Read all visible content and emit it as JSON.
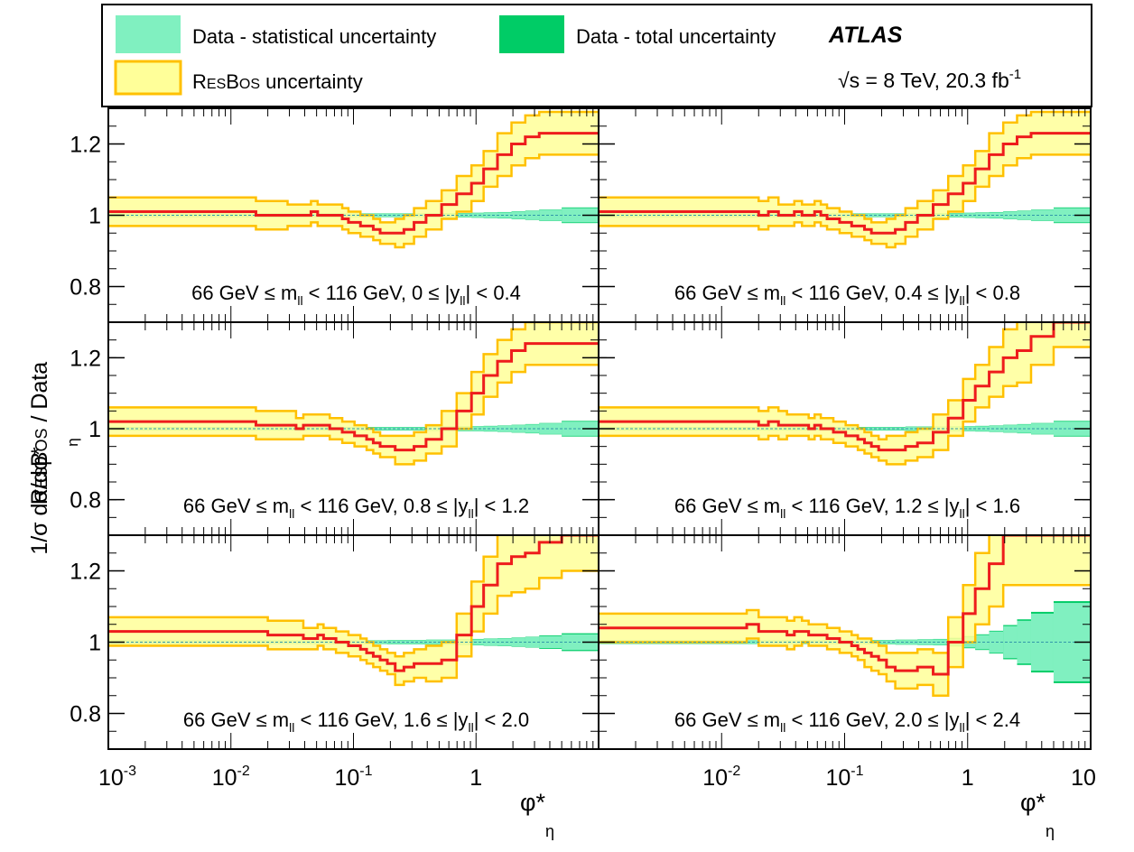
{
  "legend": {
    "stat_label": "Data - statistical uncertainty",
    "total_label": "Data - total uncertainty",
    "resbos_label_prefix": "R",
    "resbos_label_small": "ES",
    "resbos_label_mid": "B",
    "resbos_label_small2": "OS",
    "resbos_label_suffix": " uncertainty",
    "experiment": "ATLAS",
    "energy_sqrt": "√s",
    "energy_text": " = 8 TeV, 20.3 fb",
    "energy_sup": "-1"
  },
  "axis": {
    "ylabel_line1_prefix": "R",
    "ylabel_line1_small": "ES",
    "ylabel_line1_mid": "B",
    "ylabel_line1_small2": "OS",
    "ylabel_line1_suffix": " / Data",
    "ylabel_line2": "1/σ dσ/dφ*",
    "ylabel_line2_sub": "η",
    "xlabel_main": "φ*",
    "xlabel_sub": "η",
    "ytick_labels": [
      "0.8",
      "1",
      "1.2"
    ],
    "xtick_left_labels": [
      {
        "base": "10",
        "exp": "-3"
      },
      {
        "base": "10",
        "exp": "-2"
      },
      {
        "base": "10",
        "exp": "-1"
      },
      {
        "base": "1",
        "exp": ""
      }
    ],
    "xtick_right_labels": [
      {
        "base": "10",
        "exp": "-2"
      },
      {
        "base": "10",
        "exp": "-1"
      },
      {
        "base": "1",
        "exp": ""
      },
      {
        "base": "10",
        "exp": ""
      }
    ]
  },
  "colors": {
    "stat": "#80f0c0",
    "total": "#00cc66",
    "resbos_band": "#ffff99",
    "resbos_edge": "#ffc000",
    "resbos_line": "#ee1c1c",
    "ref_line": "#3399aa"
  },
  "chart_data": {
    "type": "line",
    "x_scale": "log",
    "x_edges": [
      0.001,
      0.004,
      0.008,
      0.012,
      0.016,
      0.02,
      0.024,
      0.029,
      0.034,
      0.039,
      0.045,
      0.051,
      0.057,
      0.064,
      0.072,
      0.081,
      0.091,
      0.102,
      0.114,
      0.128,
      0.145,
      0.165,
      0.189,
      0.219,
      0.258,
      0.312,
      0.391,
      0.524,
      0.695,
      0.918,
      1.153,
      1.496,
      1.947,
      2.522,
      3.277,
      5.0,
      10.0
    ],
    "ylim": [
      0.7,
      1.3
    ],
    "panels": [
      {
        "label": {
          "pre": "66 GeV ≤ m",
          "sub1": "ll",
          "mid": " < 116 GeV, 0 ≤ |y",
          "sub2": "ll",
          "post": "| < 0.4"
        },
        "show_right_xticks": false,
        "ratio": [
          1.01,
          1.01,
          1.01,
          1.01,
          1.0,
          1.0,
          1.0,
          1.0,
          1.0,
          1.0,
          1.01,
          1.0,
          1.0,
          1.0,
          1.0,
          0.99,
          0.98,
          0.98,
          0.97,
          0.97,
          0.96,
          0.95,
          0.95,
          0.95,
          0.96,
          0.98,
          1.0,
          1.03,
          1.06,
          1.09,
          1.13,
          1.17,
          1.2,
          1.22,
          1.23,
          1.23
        ],
        "band": [
          0.04,
          0.04,
          0.04,
          0.04,
          0.04,
          0.04,
          0.04,
          0.03,
          0.03,
          0.03,
          0.03,
          0.03,
          0.03,
          0.03,
          0.03,
          0.03,
          0.03,
          0.03,
          0.03,
          0.03,
          0.03,
          0.03,
          0.03,
          0.04,
          0.04,
          0.04,
          0.04,
          0.04,
          0.05,
          0.05,
          0.05,
          0.06,
          0.06,
          0.06,
          0.06,
          0.06
        ],
        "stat": [
          0.004,
          0.004,
          0.004,
          0.004,
          0.004,
          0.004,
          0.004,
          0.004,
          0.004,
          0.004,
          0.004,
          0.004,
          0.004,
          0.004,
          0.004,
          0.004,
          0.004,
          0.004,
          0.004,
          0.004,
          0.004,
          0.004,
          0.004,
          0.004,
          0.004,
          0.004,
          0.004,
          0.005,
          0.005,
          0.006,
          0.007,
          0.008,
          0.01,
          0.012,
          0.015,
          0.02
        ],
        "total": [
          0.005,
          0.005,
          0.005,
          0.005,
          0.005,
          0.005,
          0.005,
          0.005,
          0.005,
          0.005,
          0.005,
          0.005,
          0.005,
          0.005,
          0.005,
          0.005,
          0.005,
          0.005,
          0.005,
          0.005,
          0.005,
          0.005,
          0.005,
          0.005,
          0.005,
          0.005,
          0.005,
          0.006,
          0.006,
          0.007,
          0.008,
          0.009,
          0.011,
          0.013,
          0.016,
          0.022
        ]
      },
      {
        "label": {
          "pre": "66 GeV ≤ m",
          "sub1": "ll",
          "mid": " < 116 GeV, 0.4 ≤ |y",
          "sub2": "ll",
          "post": "| < 0.8"
        },
        "show_right_xticks": false,
        "ratio": [
          1.01,
          1.01,
          1.01,
          1.01,
          1.01,
          1.0,
          1.01,
          1.0,
          1.0,
          1.01,
          1.0,
          1.0,
          1.01,
          1.0,
          0.99,
          0.99,
          0.98,
          0.98,
          0.97,
          0.97,
          0.96,
          0.95,
          0.95,
          0.95,
          0.96,
          0.98,
          1.0,
          1.03,
          1.06,
          1.09,
          1.13,
          1.17,
          1.2,
          1.22,
          1.23,
          1.23
        ],
        "band": [
          0.04,
          0.04,
          0.04,
          0.04,
          0.04,
          0.04,
          0.04,
          0.03,
          0.03,
          0.03,
          0.03,
          0.03,
          0.03,
          0.03,
          0.03,
          0.03,
          0.03,
          0.03,
          0.03,
          0.03,
          0.03,
          0.03,
          0.03,
          0.04,
          0.04,
          0.04,
          0.04,
          0.04,
          0.05,
          0.05,
          0.05,
          0.06,
          0.06,
          0.06,
          0.06,
          0.06
        ],
        "stat": [
          0.004,
          0.004,
          0.004,
          0.004,
          0.004,
          0.004,
          0.004,
          0.004,
          0.004,
          0.004,
          0.004,
          0.004,
          0.004,
          0.004,
          0.004,
          0.004,
          0.004,
          0.004,
          0.004,
          0.004,
          0.004,
          0.004,
          0.004,
          0.004,
          0.004,
          0.004,
          0.004,
          0.005,
          0.005,
          0.006,
          0.007,
          0.008,
          0.01,
          0.012,
          0.015,
          0.02
        ],
        "total": [
          0.005,
          0.005,
          0.005,
          0.005,
          0.005,
          0.005,
          0.005,
          0.005,
          0.005,
          0.005,
          0.005,
          0.005,
          0.005,
          0.005,
          0.005,
          0.005,
          0.005,
          0.005,
          0.005,
          0.005,
          0.005,
          0.005,
          0.005,
          0.005,
          0.005,
          0.005,
          0.005,
          0.006,
          0.006,
          0.007,
          0.008,
          0.009,
          0.011,
          0.013,
          0.016,
          0.022
        ]
      },
      {
        "label": {
          "pre": "66 GeV ≤ m",
          "sub1": "ll",
          "mid": " < 116 GeV, 0.8 ≤ |y",
          "sub2": "ll",
          "post": "| < 1.2"
        },
        "show_right_xticks": false,
        "ratio": [
          1.02,
          1.02,
          1.02,
          1.02,
          1.01,
          1.01,
          1.01,
          1.01,
          1.0,
          1.01,
          1.01,
          1.01,
          1.01,
          1.0,
          1.0,
          0.99,
          0.99,
          0.98,
          0.98,
          0.97,
          0.96,
          0.95,
          0.95,
          0.94,
          0.94,
          0.95,
          0.97,
          1.0,
          1.05,
          1.1,
          1.15,
          1.19,
          1.22,
          1.24,
          1.24,
          1.24
        ],
        "band": [
          0.04,
          0.04,
          0.04,
          0.04,
          0.04,
          0.04,
          0.04,
          0.04,
          0.03,
          0.03,
          0.03,
          0.03,
          0.03,
          0.03,
          0.03,
          0.03,
          0.03,
          0.03,
          0.03,
          0.03,
          0.03,
          0.03,
          0.03,
          0.04,
          0.04,
          0.04,
          0.04,
          0.05,
          0.05,
          0.06,
          0.06,
          0.06,
          0.06,
          0.06,
          0.06,
          0.06
        ],
        "stat": [
          0.004,
          0.004,
          0.004,
          0.004,
          0.004,
          0.004,
          0.004,
          0.004,
          0.004,
          0.004,
          0.004,
          0.004,
          0.004,
          0.004,
          0.004,
          0.004,
          0.004,
          0.004,
          0.004,
          0.004,
          0.004,
          0.004,
          0.004,
          0.004,
          0.004,
          0.004,
          0.005,
          0.005,
          0.006,
          0.006,
          0.007,
          0.008,
          0.01,
          0.012,
          0.015,
          0.02
        ],
        "total": [
          0.005,
          0.005,
          0.005,
          0.005,
          0.005,
          0.005,
          0.005,
          0.005,
          0.005,
          0.005,
          0.005,
          0.005,
          0.005,
          0.005,
          0.005,
          0.005,
          0.005,
          0.005,
          0.005,
          0.005,
          0.005,
          0.005,
          0.005,
          0.005,
          0.005,
          0.005,
          0.006,
          0.006,
          0.007,
          0.007,
          0.008,
          0.009,
          0.011,
          0.013,
          0.016,
          0.022
        ]
      },
      {
        "label": {
          "pre": "66 GeV ≤ m",
          "sub1": "ll",
          "mid": " < 116 GeV, 1.2 ≤ |y",
          "sub2": "ll",
          "post": "| < 1.6"
        },
        "show_right_xticks": false,
        "ratio": [
          1.02,
          1.02,
          1.02,
          1.02,
          1.02,
          1.01,
          1.02,
          1.01,
          1.01,
          1.01,
          1.01,
          1.0,
          1.01,
          1.0,
          1.0,
          0.99,
          0.99,
          0.98,
          0.98,
          0.97,
          0.96,
          0.95,
          0.94,
          0.94,
          0.94,
          0.95,
          0.96,
          0.99,
          1.03,
          1.08,
          1.12,
          1.16,
          1.2,
          1.22,
          1.26,
          1.3
        ],
        "band": [
          0.04,
          0.04,
          0.04,
          0.04,
          0.04,
          0.04,
          0.04,
          0.04,
          0.03,
          0.03,
          0.03,
          0.03,
          0.03,
          0.03,
          0.03,
          0.03,
          0.03,
          0.03,
          0.03,
          0.03,
          0.03,
          0.03,
          0.03,
          0.04,
          0.04,
          0.04,
          0.04,
          0.05,
          0.05,
          0.06,
          0.06,
          0.07,
          0.08,
          0.09,
          0.08,
          0.07
        ],
        "stat": [
          0.004,
          0.004,
          0.004,
          0.004,
          0.004,
          0.004,
          0.004,
          0.004,
          0.004,
          0.004,
          0.004,
          0.004,
          0.004,
          0.004,
          0.004,
          0.004,
          0.004,
          0.004,
          0.004,
          0.004,
          0.004,
          0.004,
          0.004,
          0.004,
          0.004,
          0.005,
          0.005,
          0.005,
          0.006,
          0.006,
          0.007,
          0.008,
          0.01,
          0.012,
          0.015,
          0.02
        ],
        "total": [
          0.005,
          0.005,
          0.005,
          0.005,
          0.005,
          0.005,
          0.005,
          0.005,
          0.005,
          0.005,
          0.005,
          0.005,
          0.005,
          0.005,
          0.005,
          0.005,
          0.005,
          0.005,
          0.005,
          0.005,
          0.005,
          0.005,
          0.005,
          0.005,
          0.005,
          0.006,
          0.006,
          0.006,
          0.007,
          0.007,
          0.008,
          0.009,
          0.011,
          0.013,
          0.016,
          0.022
        ]
      },
      {
        "label": {
          "pre": "66 GeV ≤ m",
          "sub1": "ll",
          "mid": " < 116 GeV, 1.6 ≤ |y",
          "sub2": "ll",
          "post": "| < 2.0"
        },
        "show_right_xticks": true,
        "ratio": [
          1.03,
          1.03,
          1.03,
          1.03,
          1.03,
          1.02,
          1.02,
          1.02,
          1.02,
          1.01,
          1.01,
          1.02,
          1.01,
          1.01,
          1.0,
          1.0,
          0.99,
          0.99,
          0.98,
          0.97,
          0.96,
          0.95,
          0.94,
          0.92,
          0.93,
          0.94,
          0.94,
          0.95,
          1.02,
          1.1,
          1.16,
          1.22,
          1.24,
          1.25,
          1.28,
          1.3
        ],
        "band": [
          0.04,
          0.04,
          0.04,
          0.04,
          0.04,
          0.04,
          0.04,
          0.04,
          0.04,
          0.03,
          0.03,
          0.03,
          0.03,
          0.03,
          0.03,
          0.03,
          0.03,
          0.03,
          0.03,
          0.03,
          0.03,
          0.03,
          0.03,
          0.04,
          0.04,
          0.04,
          0.05,
          0.05,
          0.06,
          0.07,
          0.08,
          0.09,
          0.1,
          0.1,
          0.1,
          0.1
        ],
        "stat": [
          0.004,
          0.004,
          0.004,
          0.004,
          0.004,
          0.004,
          0.004,
          0.004,
          0.004,
          0.004,
          0.004,
          0.004,
          0.004,
          0.004,
          0.004,
          0.004,
          0.004,
          0.004,
          0.004,
          0.004,
          0.004,
          0.004,
          0.005,
          0.005,
          0.005,
          0.005,
          0.006,
          0.006,
          0.007,
          0.008,
          0.009,
          0.01,
          0.012,
          0.014,
          0.017,
          0.022
        ],
        "total": [
          0.005,
          0.005,
          0.005,
          0.005,
          0.005,
          0.005,
          0.005,
          0.005,
          0.005,
          0.005,
          0.005,
          0.005,
          0.005,
          0.005,
          0.005,
          0.005,
          0.005,
          0.005,
          0.005,
          0.005,
          0.005,
          0.005,
          0.006,
          0.006,
          0.006,
          0.006,
          0.007,
          0.007,
          0.008,
          0.009,
          0.01,
          0.011,
          0.013,
          0.015,
          0.019,
          0.025
        ]
      },
      {
        "label": {
          "pre": "66 GeV ≤ m",
          "sub1": "ll",
          "mid": " < 116 GeV, 2.0 ≤ |y",
          "sub2": "ll",
          "post": "| < 2.4"
        },
        "show_right_xticks": true,
        "ratio": [
          1.04,
          1.04,
          1.04,
          1.04,
          1.05,
          1.03,
          1.03,
          1.03,
          1.02,
          1.03,
          1.03,
          1.02,
          1.02,
          1.02,
          1.01,
          1.01,
          1.0,
          1.0,
          0.99,
          0.98,
          0.97,
          0.96,
          0.95,
          0.93,
          0.92,
          0.92,
          0.93,
          0.91,
          1.0,
          1.08,
          1.15,
          1.22,
          1.3,
          1.3,
          1.3,
          1.3
        ],
        "band": [
          0.04,
          0.04,
          0.04,
          0.04,
          0.04,
          0.04,
          0.04,
          0.04,
          0.04,
          0.04,
          0.03,
          0.03,
          0.03,
          0.03,
          0.03,
          0.03,
          0.03,
          0.03,
          0.03,
          0.03,
          0.04,
          0.04,
          0.04,
          0.04,
          0.05,
          0.05,
          0.05,
          0.06,
          0.07,
          0.08,
          0.1,
          0.12,
          0.14,
          0.14,
          0.14,
          0.14
        ],
        "stat": [
          0.004,
          0.004,
          0.004,
          0.004,
          0.004,
          0.004,
          0.004,
          0.004,
          0.004,
          0.004,
          0.004,
          0.004,
          0.004,
          0.004,
          0.004,
          0.004,
          0.004,
          0.004,
          0.004,
          0.004,
          0.005,
          0.005,
          0.005,
          0.005,
          0.006,
          0.006,
          0.007,
          0.008,
          0.01,
          0.015,
          0.02,
          0.03,
          0.045,
          0.06,
          0.08,
          0.11
        ],
        "total": [
          0.005,
          0.005,
          0.005,
          0.005,
          0.005,
          0.005,
          0.005,
          0.005,
          0.005,
          0.005,
          0.005,
          0.005,
          0.005,
          0.005,
          0.005,
          0.005,
          0.005,
          0.005,
          0.005,
          0.005,
          0.006,
          0.006,
          0.006,
          0.006,
          0.007,
          0.007,
          0.008,
          0.009,
          0.012,
          0.017,
          0.022,
          0.032,
          0.048,
          0.064,
          0.085,
          0.115
        ]
      }
    ]
  }
}
